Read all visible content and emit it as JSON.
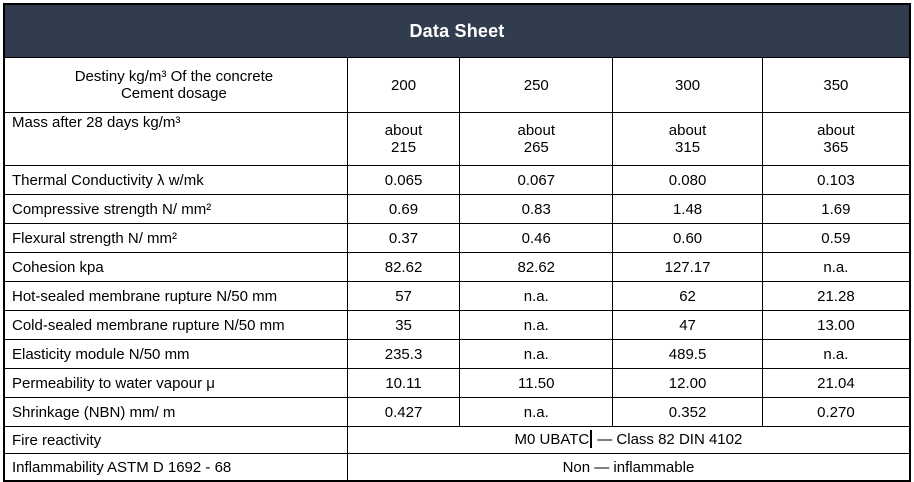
{
  "title": "Data Sheet",
  "theme": {
    "header_bg": "#313D4F",
    "header_text": "#FFFFFF",
    "border_color": "#000000"
  },
  "table": {
    "rows": [
      {
        "label": "Destiny kg/m³ Of the concrete\nCement dosage",
        "values": [
          "200",
          "250",
          "300",
          "350"
        ]
      },
      {
        "label": "Mass after 28 days kg/m³",
        "values": [
          "about\n215",
          "about\n265",
          "about\n315",
          "about\n365"
        ]
      },
      {
        "label": "Thermal Conductivity  λ w/mk",
        "values": [
          "0.065",
          "0.067",
          "0.080",
          "0.103"
        ]
      },
      {
        "label": "Compressive  strength N/ mm²",
        "values": [
          "0.69",
          "0.83",
          "1.48",
          "1.69"
        ]
      },
      {
        "label": "Flexural strength N/ mm²",
        "values": [
          "0.37",
          "0.46",
          "0.60",
          "0.59"
        ]
      },
      {
        "label": "Cohesion kpa",
        "values": [
          "82.62",
          "82.62",
          "127.17",
          "n.a."
        ]
      },
      {
        "label": "Hot-sealed membrane rupture N/50 mm",
        "values": [
          "57",
          "n.a.",
          "62",
          "21.28"
        ]
      },
      {
        "label": "Cold-sealed membrane rupture N/50 mm",
        "values": [
          "35",
          "n.a.",
          "47",
          "13.00"
        ]
      },
      {
        "label": "Elasticity module N/50 mm",
        "values": [
          "235.3",
          "n.a.",
          "489.5",
          "n.a."
        ]
      },
      {
        "label": "Permeability to water vapour μ",
        "values": [
          "10.11",
          "11.50",
          "12.00",
          "21.04"
        ]
      },
      {
        "label": "Shrinkage (NBN) mm/ m",
        "values": [
          "0.427",
          "n.a.",
          "0.352",
          "0.270"
        ]
      },
      {
        "label": "Fire reactivity",
        "value_left": "M0 UBATC",
        "value_right": "— Class 82 DIN 4102"
      },
      {
        "label": "Inflammability ASTM D 1692 - 68",
        "value": "Non — inflammable"
      }
    ]
  }
}
